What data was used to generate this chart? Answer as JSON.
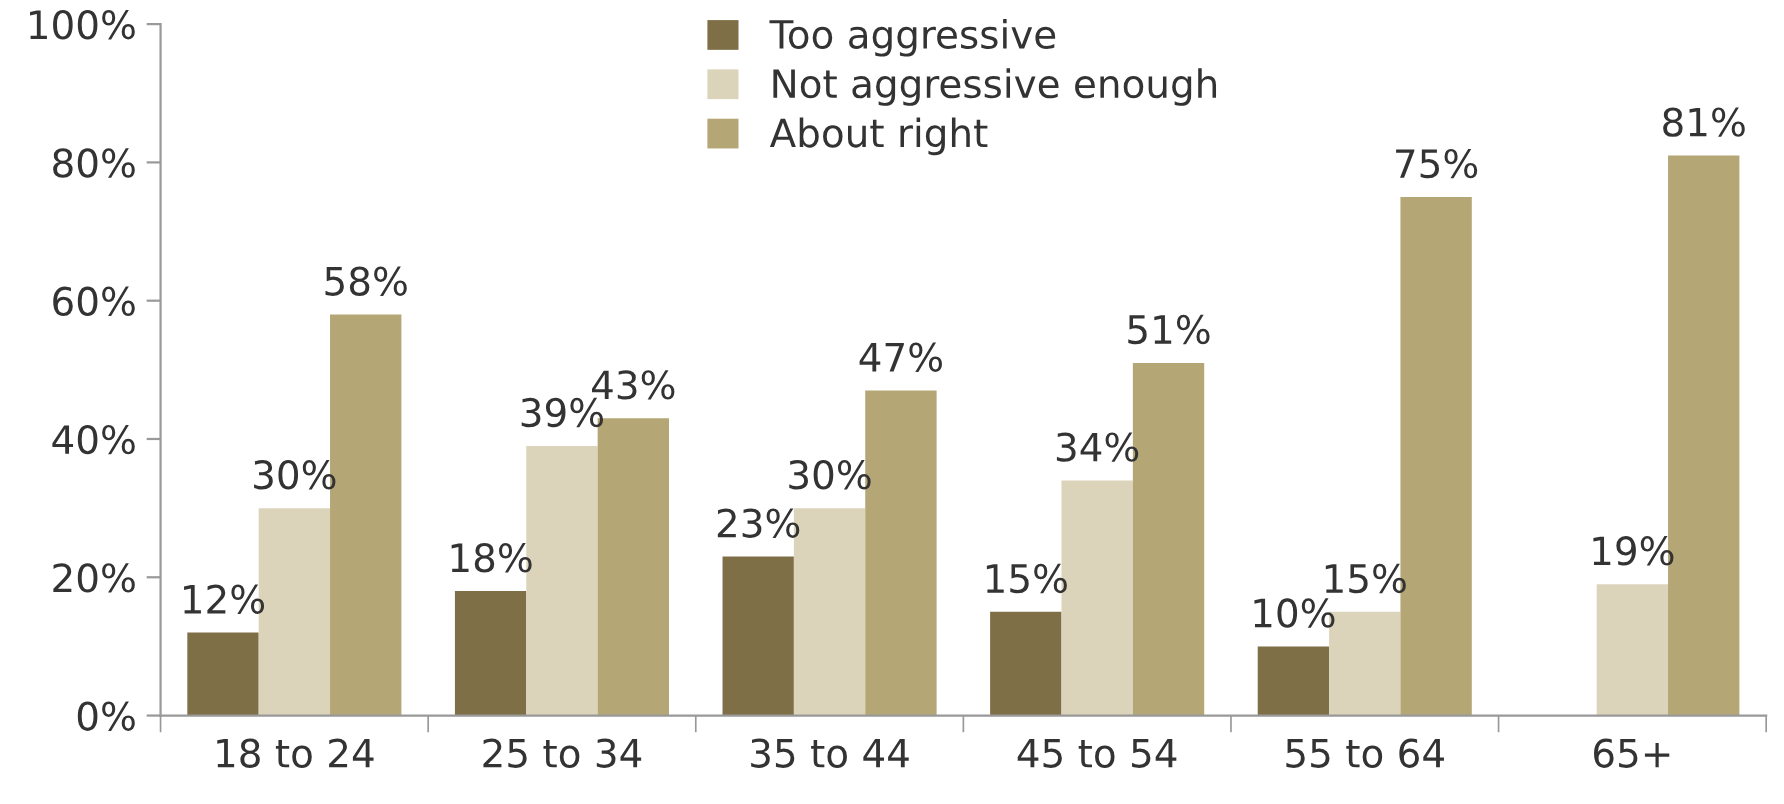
{
  "chart_data": {
    "type": "bar",
    "categories": [
      "18 to 24",
      "25 to 34",
      "35 to 44",
      "45 to 54",
      "55 to 64",
      "65+"
    ],
    "series": [
      {
        "name": "Too aggressive",
        "color": "#7f6f47",
        "values": [
          12,
          18,
          23,
          15,
          10,
          null
        ],
        "value_labels": [
          "12%",
          "18%",
          "23%",
          "15%",
          "10%",
          null
        ]
      },
      {
        "name": "Not aggressive enough",
        "color": "#dcd3bb",
        "values": [
          30,
          39,
          30,
          34,
          15,
          19
        ],
        "value_labels": [
          "30%",
          "39%",
          "30%",
          "34%",
          "15%",
          "19%"
        ]
      },
      {
        "name": "About right",
        "color": "#b5a676",
        "values": [
          58,
          43,
          47,
          51,
          75,
          81
        ],
        "value_labels": [
          "58%",
          "43%",
          "47%",
          "51%",
          "75%",
          "81%"
        ]
      }
    ],
    "ylim": [
      0,
      100
    ],
    "yticks": [
      {
        "value": 0,
        "label": "0%"
      },
      {
        "value": 20,
        "label": "20%"
      },
      {
        "value": 40,
        "label": "40%"
      },
      {
        "value": 60,
        "label": "60%"
      },
      {
        "value": 80,
        "label": "80%"
      },
      {
        "value": 100,
        "label": "100%"
      }
    ],
    "legend": "top",
    "grid": false
  }
}
